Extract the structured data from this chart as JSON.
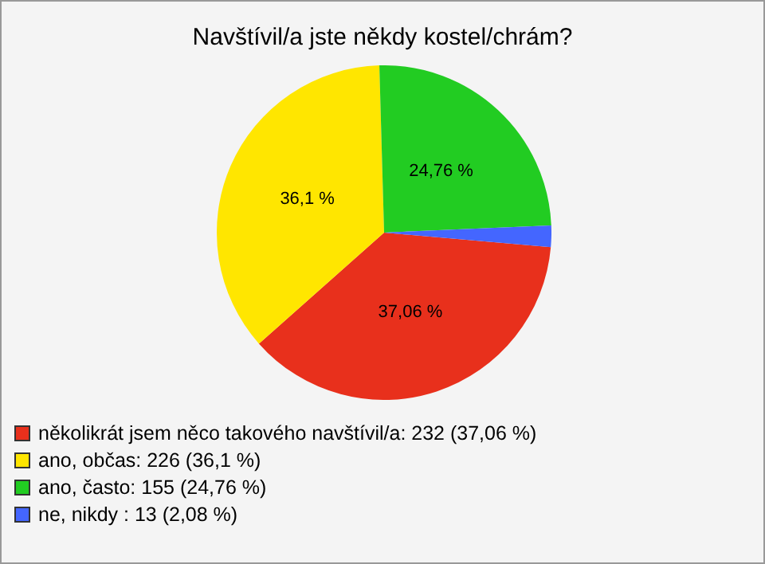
{
  "chart_data": {
    "type": "pie",
    "title": "Navštívil/a jste někdy kostel/chrám?",
    "categories": [
      "několikrát jsem něco takového navštívil/a: 232 (37,06 %)",
      "ano, občas: 226 (36,1 %)",
      "ano, často: 155 (24,76 %)",
      "ne, nikdy : 13 (2,08 %)"
    ],
    "values": [
      37.06,
      36.1,
      24.76,
      2.08
    ],
    "value_labels": [
      "37,06 %",
      "36,1 %",
      "24,76 %",
      null
    ],
    "colors": [
      "#e8301c",
      "#ffe600",
      "#22cc22",
      "#4466ff"
    ],
    "legend": "bottom"
  }
}
